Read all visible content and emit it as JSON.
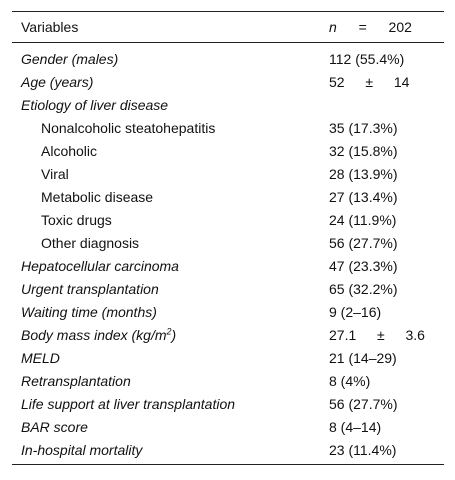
{
  "header": {
    "variables_label": "Variables",
    "n_label": "n",
    "equals": "=",
    "n_value": "202"
  },
  "rows": [
    {
      "label": "Gender (males)",
      "value": "112 (55.4%)"
    },
    {
      "label": "Age (years)",
      "value_main": "52",
      "value_pm": "±",
      "value_sd": "14"
    },
    {
      "label": "Etiology of liver disease",
      "value": ""
    },
    {
      "label": "Nonalcoholic steatohepatitis",
      "value": "35 (17.3%)"
    },
    {
      "label": "Alcoholic",
      "value": "32 (15.8%)"
    },
    {
      "label": "Viral",
      "value": "28 (13.9%)"
    },
    {
      "label": "Metabolic disease",
      "value": "27 (13.4%)"
    },
    {
      "label": "Toxic drugs",
      "value": "24 (11.9%)"
    },
    {
      "label": "Other diagnosis",
      "value": "56 (27.7%)"
    },
    {
      "label": "Hepatocellular carcinoma",
      "value": "47 (23.3%)"
    },
    {
      "label": "Urgent transplantation",
      "value": "65 (32.2%)"
    },
    {
      "label": "Waiting time (months)",
      "value": "9 (2–16)"
    },
    {
      "label": "Body mass index (kg/m",
      "label_sup": "2",
      "label_end": ")",
      "value_main": "27.1",
      "value_pm": "±",
      "value_sd": "3.6"
    },
    {
      "label": "MELD",
      "value": "21 (14–29)"
    },
    {
      "label": "Retransplantation",
      "value": "8 (4%)"
    },
    {
      "label": "Life support at liver transplantation",
      "value": "56 (27.7%)"
    },
    {
      "label": "BAR score",
      "value": "8 (4–14)"
    },
    {
      "label": "In-hospital mortality",
      "value": "23 (11.4%)"
    }
  ]
}
